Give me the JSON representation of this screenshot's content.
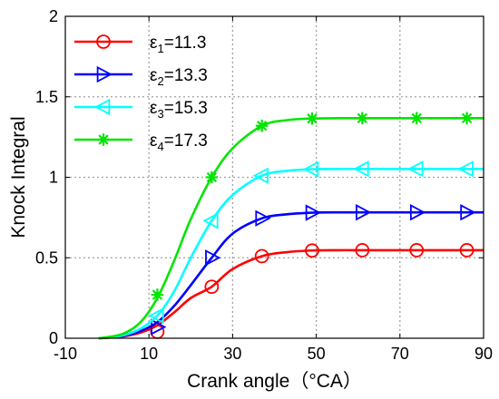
{
  "chart_data": {
    "type": "line",
    "xlabel": "Crank angle（°CA）",
    "ylabel": "Knock Integral",
    "xlim": [
      -10,
      90
    ],
    "ylim": [
      0,
      2
    ],
    "xticks": [
      -10,
      10,
      30,
      50,
      70,
      90
    ],
    "yticks": [
      0,
      0.5,
      1,
      1.5,
      2
    ],
    "xtick_labels": [
      "-10",
      "10",
      "30",
      "50",
      "70",
      "90"
    ],
    "ytick_labels": [
      "0",
      "0.5",
      "1",
      "1.5",
      "2"
    ],
    "grid": true,
    "legend_position": "top-left",
    "series": [
      {
        "name": "ε1=11.3",
        "label_main": "ε",
        "label_sub": "1",
        "label_tail": "=11.3",
        "color": "#ff0000",
        "marker": "circle",
        "x": [
          -2,
          0,
          4,
          8,
          12,
          16,
          20,
          25,
          30,
          37,
          43,
          49,
          55,
          61,
          67,
          74,
          80,
          87,
          90
        ],
        "y": [
          0,
          0.003,
          0.012,
          0.035,
          0.08,
          0.16,
          0.25,
          0.32,
          0.43,
          0.51,
          0.535,
          0.545,
          0.547,
          0.547,
          0.547,
          0.547,
          0.547,
          0.547,
          0.547
        ],
        "marker_x": [
          12,
          25,
          37,
          49,
          61,
          74,
          86
        ],
        "marker_y": [
          0.04,
          0.32,
          0.51,
          0.545,
          0.547,
          0.547,
          0.547
        ]
      },
      {
        "name": "ε2=13.3",
        "label_main": "ε",
        "label_sub": "2",
        "label_tail": "=13.3",
        "color": "#0000ff",
        "marker": "triangle-right",
        "x": [
          -2,
          0,
          4,
          8,
          12,
          16,
          20,
          25,
          30,
          37,
          43,
          49,
          55,
          61,
          67,
          74,
          80,
          87,
          90
        ],
        "y": [
          0,
          0.004,
          0.015,
          0.045,
          0.1,
          0.2,
          0.33,
          0.5,
          0.65,
          0.745,
          0.77,
          0.78,
          0.782,
          0.782,
          0.782,
          0.782,
          0.782,
          0.782,
          0.782
        ],
        "marker_x": [
          12,
          25,
          37,
          49,
          61,
          74,
          86
        ],
        "marker_y": [
          0.07,
          0.5,
          0.745,
          0.78,
          0.782,
          0.782,
          0.782
        ]
      },
      {
        "name": "ε3=15.3",
        "label_main": "ε",
        "label_sub": "3",
        "label_tail": "=15.3",
        "color": "#00ffff",
        "marker": "triangle-left",
        "x": [
          -2,
          0,
          4,
          8,
          12,
          16,
          20,
          25,
          30,
          37,
          43,
          49,
          55,
          61,
          67,
          74,
          80,
          87,
          90
        ],
        "y": [
          0,
          0.005,
          0.02,
          0.06,
          0.14,
          0.29,
          0.5,
          0.73,
          0.89,
          1.01,
          1.04,
          1.05,
          1.052,
          1.052,
          1.052,
          1.052,
          1.052,
          1.052,
          1.052
        ],
        "marker_x": [
          12,
          25,
          37,
          49,
          61,
          74,
          86
        ],
        "marker_y": [
          0.14,
          0.73,
          1.01,
          1.05,
          1.052,
          1.052,
          1.052
        ]
      },
      {
        "name": "ε4=17.3",
        "label_main": "ε",
        "label_sub": "4",
        "label_tail": "=17.3",
        "color": "#00e600",
        "marker": "asterisk",
        "x": [
          -2,
          0,
          4,
          8,
          12,
          16,
          20,
          25,
          30,
          37,
          43,
          49,
          55,
          61,
          67,
          74,
          80,
          87,
          90
        ],
        "y": [
          0,
          0.006,
          0.03,
          0.1,
          0.25,
          0.48,
          0.74,
          1.0,
          1.18,
          1.32,
          1.355,
          1.365,
          1.367,
          1.367,
          1.367,
          1.367,
          1.367,
          1.367,
          1.367
        ],
        "marker_x": [
          12,
          25,
          37,
          49,
          61,
          74,
          86
        ],
        "marker_y": [
          0.27,
          1.0,
          1.32,
          1.365,
          1.367,
          1.367,
          1.367
        ]
      }
    ]
  }
}
